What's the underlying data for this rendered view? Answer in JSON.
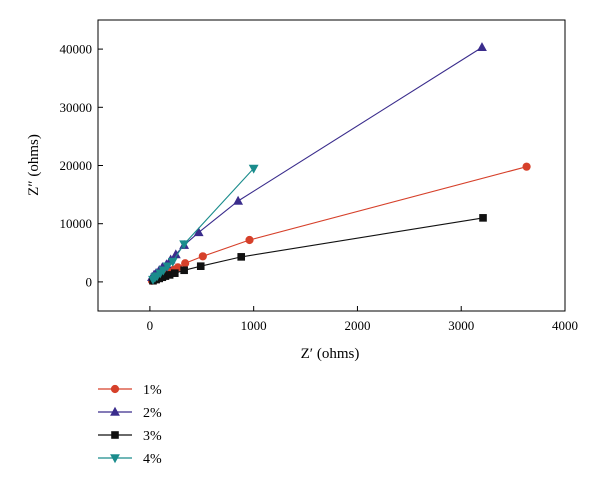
{
  "chart_data": {
    "type": "line",
    "title": "",
    "xlabel": "Z′ (ohms)",
    "ylabel": "Z″ (ohms)",
    "xlim": [
      -500,
      4000
    ],
    "ylim": [
      -5000,
      45000
    ],
    "x_ticks": [
      0,
      1000,
      2000,
      3000,
      4000
    ],
    "y_ticks": [
      0,
      10000,
      20000,
      30000,
      40000
    ],
    "x_tick_labels": [
      "0",
      "1000",
      "2000",
      "3000",
      "4000"
    ],
    "y_tick_labels": [
      "0",
      "10000",
      "20000",
      "30000",
      "40000"
    ],
    "grid": false,
    "legend_position": "below-left",
    "series": [
      {
        "name": "1%",
        "color": "#d6402a",
        "marker": "circle",
        "x": [
          20,
          40,
          60,
          80,
          100,
          130,
          160,
          190,
          230,
          270,
          340,
          510,
          960,
          3630
        ],
        "y": [
          200,
          400,
          600,
          800,
          1000,
          1250,
          1500,
          1800,
          2100,
          2500,
          3200,
          4400,
          7200,
          19800
        ]
      },
      {
        "name": "2%",
        "color": "#3a2c8c",
        "marker": "triangle-up",
        "x": [
          20,
          40,
          60,
          90,
          120,
          160,
          200,
          250,
          330,
          470,
          850,
          3200
        ],
        "y": [
          800,
          1200,
          1500,
          2000,
          2500,
          3000,
          3800,
          4700,
          6300,
          8500,
          13900,
          40300
        ]
      },
      {
        "name": "3%",
        "color": "#111111",
        "marker": "square",
        "x": [
          30,
          60,
          90,
          120,
          150,
          190,
          240,
          330,
          490,
          880,
          3210
        ],
        "y": [
          200,
          400,
          600,
          800,
          1000,
          1200,
          1500,
          2000,
          2700,
          4300,
          11000
        ]
      },
      {
        "name": "4%",
        "color": "#1a8c8c",
        "marker": "triangle-down",
        "x": [
          30,
          50,
          70,
          100,
          130,
          170,
          220,
          330,
          1000
        ],
        "y": [
          400,
          800,
          1000,
          1500,
          2000,
          2700,
          3500,
          6500,
          19500
        ]
      }
    ]
  }
}
